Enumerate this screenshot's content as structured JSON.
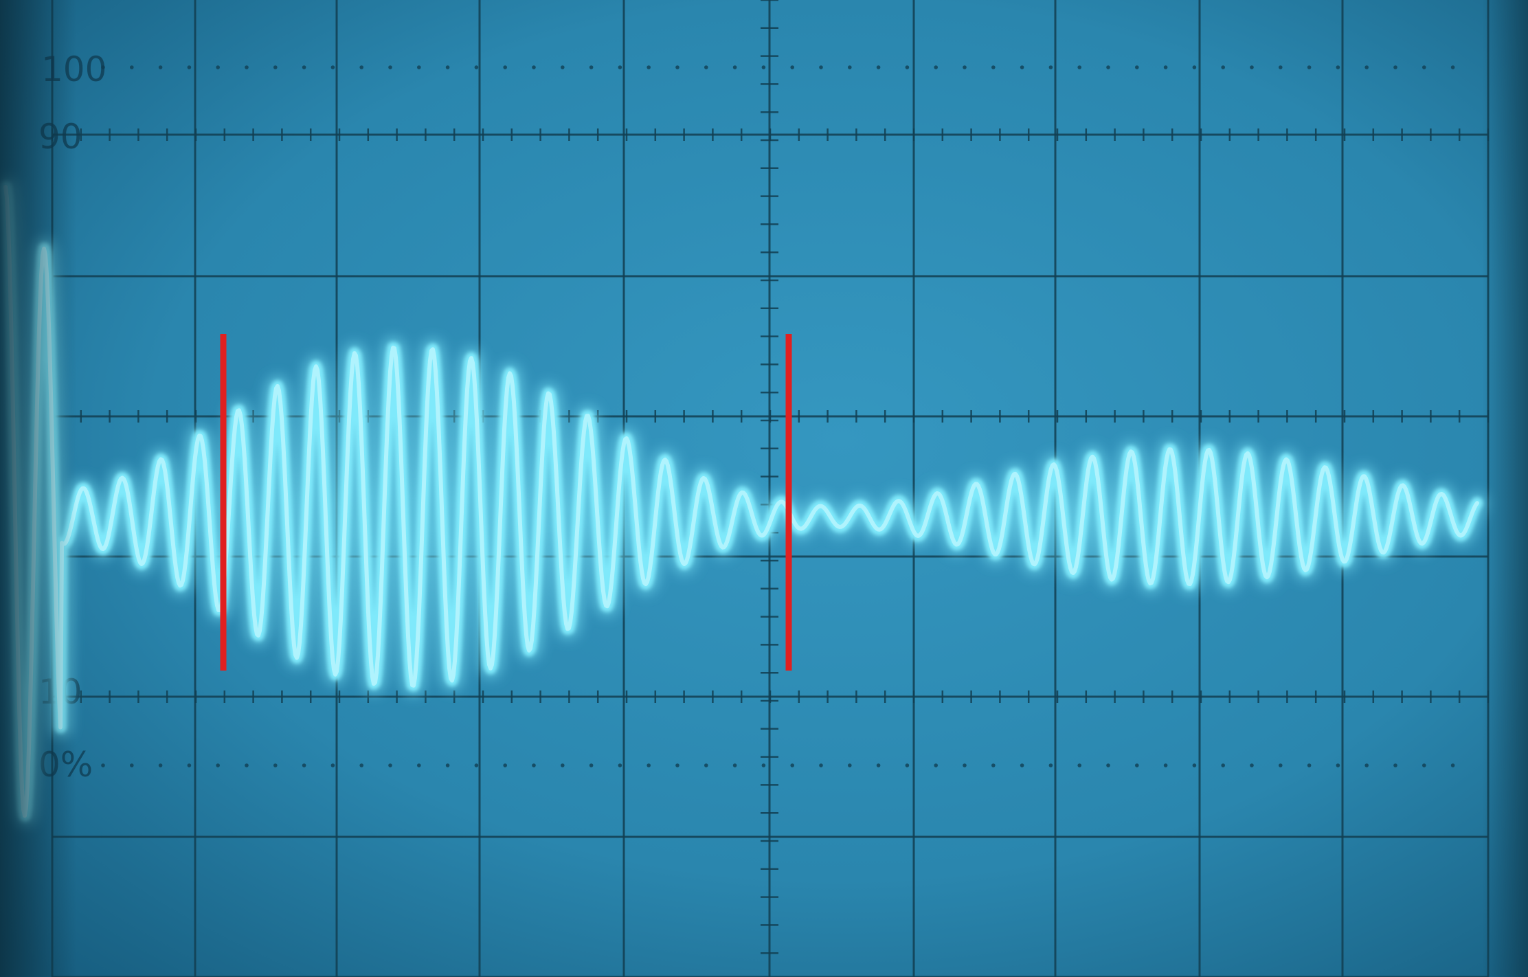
{
  "scope": {
    "screen_color": "#2a8bb4",
    "graticule_color": "#123f52",
    "trace_color": "#7fe9fb",
    "trace_core_color": "#d9fbff",
    "marker_color": "#e02020",
    "scale_labels": {
      "top": "100",
      "upper": "90",
      "lower": "10",
      "bottom": "0%"
    }
  }
}
